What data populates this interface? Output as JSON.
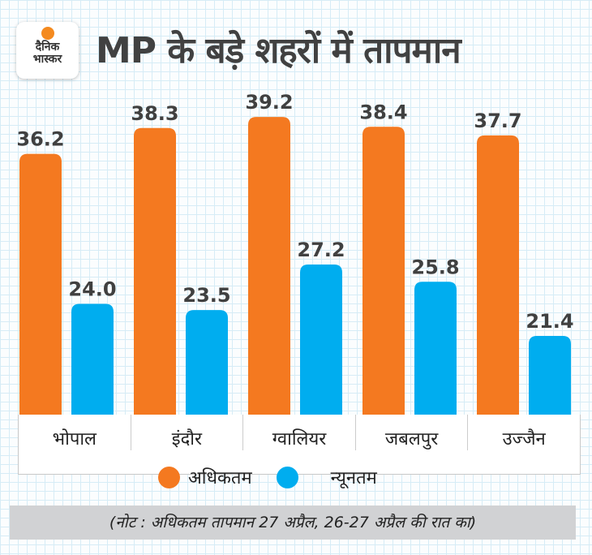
{
  "brand": {
    "logo_line1": "दैनिक",
    "logo_line2": "भास्कर"
  },
  "note": "(नोट : अधिकतम तापमान 27 अप्रैल, 26-27 अप्रैल की रात का)",
  "chart_data": {
    "type": "bar",
    "title": "MP के बड़े शहरों में तापमान",
    "categories": [
      "भोपाल",
      "इंदौर",
      "ग्वालियर",
      "जबलपुर",
      "उज्जैन"
    ],
    "series": [
      {
        "name": "अधिकतम",
        "color": "#f47920",
        "values": [
          36.2,
          38.3,
          39.2,
          38.4,
          37.7
        ]
      },
      {
        "name": "न्यूनतम",
        "color": "#00adef",
        "values": [
          24.0,
          23.5,
          27.2,
          25.8,
          21.4
        ]
      }
    ],
    "legend": "bottom",
    "data_labels": true,
    "grid": false
  }
}
